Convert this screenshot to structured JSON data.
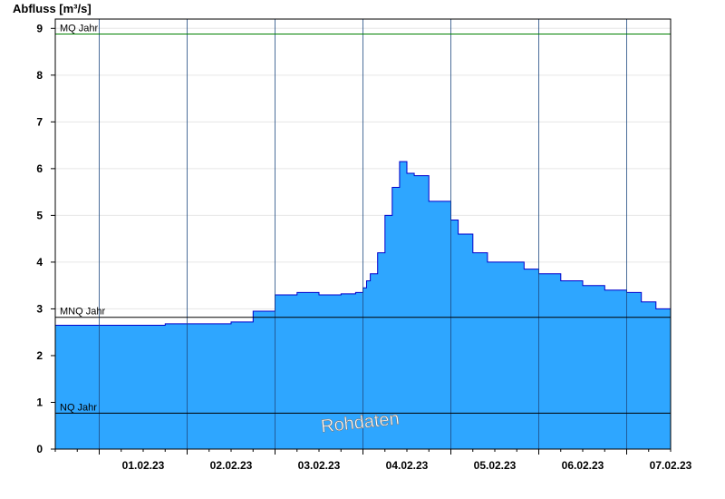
{
  "chart_data": {
    "type": "area",
    "ylabel": "Abfluss [m³/s]",
    "ylim": [
      0,
      9.2
    ],
    "yticks": [
      0,
      1,
      2,
      3,
      4,
      5,
      6,
      7,
      8,
      9
    ],
    "x_start": "2023-01-31 12:00",
    "x_end": "2023-02-07 12:00",
    "day_ticks": [
      "01.02.23",
      "02.02.23",
      "03.02.23",
      "04.02.23",
      "05.02.23",
      "06.02.23",
      "07.02.23"
    ],
    "grid": true,
    "series": [
      {
        "fill_color": "#2ea6ff",
        "line_color": "#0000cc",
        "x": [
          "2023-01-31 12:00",
          "2023-02-01 18:00",
          "2023-02-02 12:00",
          "2023-02-02 18:00",
          "2023-02-03 00:00",
          "2023-02-03 06:00",
          "2023-02-03 12:00",
          "2023-02-03 18:00",
          "2023-02-03 22:00",
          "2023-02-04 00:00",
          "2023-02-04 01:00",
          "2023-02-04 02:00",
          "2023-02-04 04:00",
          "2023-02-04 06:00",
          "2023-02-04 08:00",
          "2023-02-04 10:00",
          "2023-02-04 12:00",
          "2023-02-04 14:00",
          "2023-02-04 18:00",
          "2023-02-04 22:00",
          "2023-02-05 00:00",
          "2023-02-05 02:00",
          "2023-02-05 06:00",
          "2023-02-05 10:00",
          "2023-02-05 14:00",
          "2023-02-05 20:00",
          "2023-02-06 00:00",
          "2023-02-06 06:00",
          "2023-02-06 12:00",
          "2023-02-06 18:00",
          "2023-02-07 00:00",
          "2023-02-07 04:00",
          "2023-02-07 08:00",
          "2023-02-07 12:00"
        ],
        "y": [
          2.65,
          2.68,
          2.72,
          2.95,
          3.3,
          3.35,
          3.3,
          3.32,
          3.35,
          3.45,
          3.6,
          3.75,
          4.2,
          5.0,
          5.6,
          6.15,
          5.9,
          5.85,
          5.3,
          5.3,
          4.9,
          4.6,
          4.2,
          4.0,
          4.0,
          3.85,
          3.75,
          3.6,
          3.5,
          3.4,
          3.35,
          3.15,
          3.0,
          3.2
        ]
      }
    ],
    "reference_lines": [
      {
        "label": "MQ Jahr",
        "value": 8.88,
        "color": "#008000"
      },
      {
        "label": "MNQ Jahr",
        "value": 2.82,
        "color": "#000000"
      },
      {
        "label": "NQ Jahr",
        "value": 0.77,
        "color": "#000000"
      }
    ],
    "watermark": "Rohdaten"
  }
}
